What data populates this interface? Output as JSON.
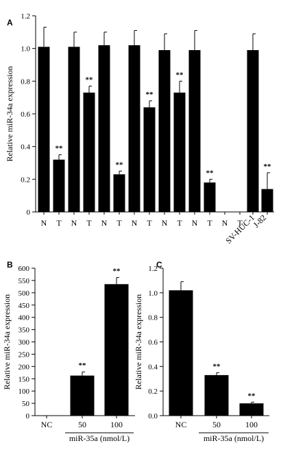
{
  "chart_data": [
    {
      "panel": "A",
      "type": "bar",
      "ylabel": "Relative miR-34a expression",
      "ylim": [
        0,
        1.2
      ],
      "yticks": [
        "0",
        "0.2",
        "0.4",
        "0.6",
        "0.8",
        "1.0",
        "1.2"
      ],
      "categories": [
        "N",
        "T",
        "N",
        "T",
        "N",
        "T",
        "N",
        "T",
        "N",
        "T",
        "N",
        "T",
        "N",
        "T",
        "SV-HUC-1",
        "J-82"
      ],
      "values": [
        1.01,
        0.32,
        1.01,
        0.73,
        1.02,
        0.23,
        1.02,
        0.64,
        0.99,
        0.73,
        0.99,
        0.18,
        null,
        null,
        0.99,
        0.14
      ],
      "errors": [
        0.12,
        0.03,
        0.09,
        0.04,
        0.08,
        0.02,
        0.09,
        0.04,
        0.1,
        0.07,
        0.12,
        0.02,
        null,
        null,
        0.1,
        0.1
      ],
      "significance": [
        "",
        "**",
        "",
        "**",
        "",
        "**",
        "",
        "**",
        "",
        "**",
        "",
        "**",
        "",
        "",
        "",
        "**"
      ],
      "grid": false
    },
    {
      "panel": "B",
      "type": "bar",
      "ylabel": "Relative miR-34a expression",
      "ylim": [
        0,
        600
      ],
      "yticks": [
        "0",
        "50",
        "100",
        "150",
        "200",
        "250",
        "300",
        "350",
        "400",
        "450",
        "500",
        "550",
        "600"
      ],
      "categories": [
        "NC",
        "50",
        "100"
      ],
      "values": [
        1,
        163,
        535
      ],
      "errors": [
        0,
        15,
        27
      ],
      "significance": [
        "",
        "**",
        "**"
      ],
      "group_label": "miR-35a (nmol/L)",
      "grid": false
    },
    {
      "panel": "C",
      "type": "bar",
      "ylabel": "Relative miR-34a expression",
      "ylim": [
        0,
        1.2
      ],
      "yticks": [
        "0.0",
        "0.2",
        "0.4",
        "0.6",
        "0.8",
        "1.0",
        "1.2"
      ],
      "categories": [
        "NC",
        "50",
        "100"
      ],
      "values": [
        1.02,
        0.33,
        0.1
      ],
      "errors": [
        0.07,
        0.02,
        0.01
      ],
      "significance": [
        "",
        "**",
        "**"
      ],
      "group_label": "miR-35a (nmol/L)",
      "grid": false
    }
  ]
}
